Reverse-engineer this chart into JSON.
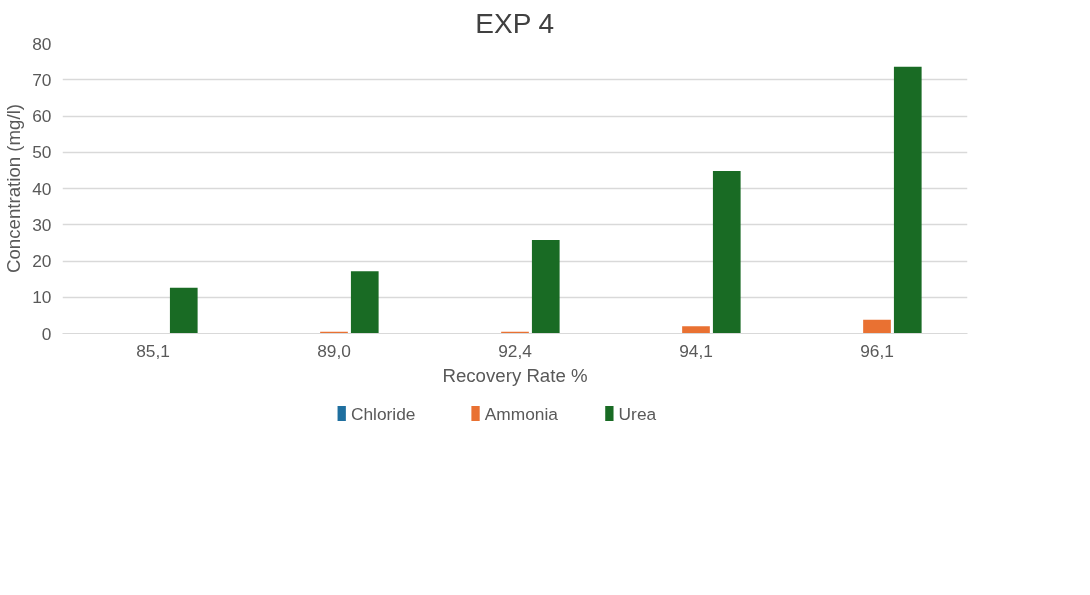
{
  "chart_data": {
    "type": "bar",
    "title": "EXP 4",
    "xlabel": "Recovery Rate %",
    "ylabel": "Concentration (mg/l)",
    "categories": [
      "85,1",
      "89,0",
      "92,4",
      "94,1",
      "96,1"
    ],
    "series": [
      {
        "name": "Chloride",
        "color": "#1f6f9f",
        "values": [
          0,
          0,
          0,
          0,
          0
        ]
      },
      {
        "name": "Ammonia",
        "color": "#e97132",
        "values": [
          0,
          0.5,
          0.5,
          2,
          3.8
        ]
      },
      {
        "name": "Urea",
        "color": "#196b24",
        "values": [
          12.6,
          17.2,
          25.8,
          44.8,
          73.6
        ]
      }
    ],
    "ylim": [
      0,
      80
    ],
    "yticks": [
      0,
      10,
      20,
      30,
      40,
      50,
      60,
      70,
      80
    ],
    "grid": "y",
    "legend": "bottom"
  }
}
